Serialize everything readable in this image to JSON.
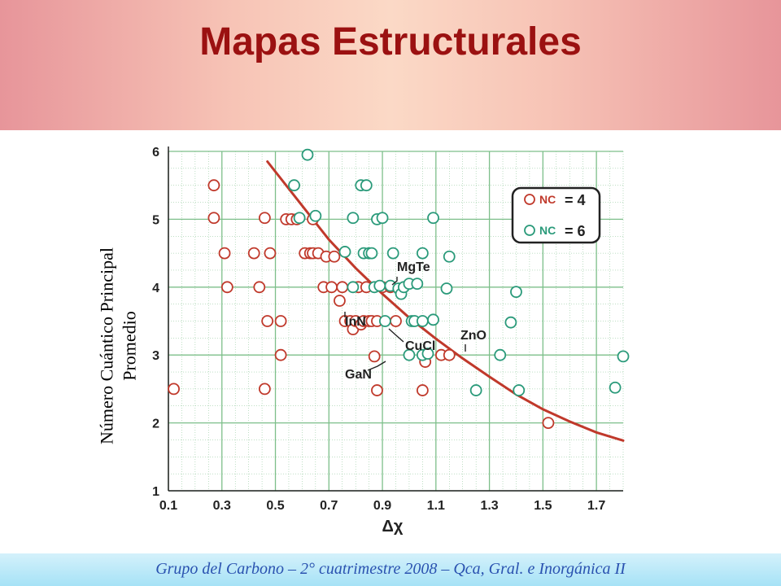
{
  "slide": {
    "title": "Mapas Estructurales",
    "ylabel_line1": "Número Cuántico Principal",
    "ylabel_line2": "Promedio",
    "footer": "Grupo del Carbono – 2° cuatrimestre 2008 – Qca, Gral. e Inorgánica II"
  },
  "colors": {
    "title": "#9b1111",
    "nc4": "#c0392b",
    "nc6": "#2a9a7a",
    "grid": "#7dbf8a",
    "curve": "#c0392b",
    "footer_text": "#2a52b0"
  },
  "chart_data": {
    "type": "scatter",
    "xlabel": "Δχ",
    "xlim": [
      0.1,
      1.8
    ],
    "ylim": [
      1,
      6
    ],
    "xticks": [
      "0.1",
      "0.3",
      "0.5",
      "0.7",
      "0.9",
      "1.1",
      "1.3",
      "1.5",
      "1.7"
    ],
    "yticks": [
      "1",
      "2",
      "3",
      "4",
      "5",
      "6"
    ],
    "grid": true,
    "legend_placement": "top-right",
    "legend": [
      {
        "label": "NC",
        "value": "= 4",
        "color": "#c0392b"
      },
      {
        "label": "NC",
        "value": "= 6",
        "color": "#2a9a7a"
      }
    ],
    "series": [
      {
        "color": "#c0392b",
        "points": [
          [
            0.12,
            2.5
          ],
          [
            0.27,
            5.5
          ],
          [
            0.27,
            5.02
          ],
          [
            0.31,
            4.5
          ],
          [
            0.32,
            4.0
          ],
          [
            0.42,
            4.5
          ],
          [
            0.44,
            4.0
          ],
          [
            0.46,
            5.02
          ],
          [
            0.46,
            2.5
          ],
          [
            0.47,
            3.5
          ],
          [
            0.48,
            4.5
          ],
          [
            0.52,
            3.5
          ],
          [
            0.52,
            3.0
          ],
          [
            0.54,
            5.0
          ],
          [
            0.56,
            5.0
          ],
          [
            0.58,
            5.0
          ],
          [
            0.61,
            4.5
          ],
          [
            0.63,
            4.5
          ],
          [
            0.64,
            4.5
          ],
          [
            0.64,
            5.0
          ],
          [
            0.66,
            4.5
          ],
          [
            0.68,
            4.0
          ],
          [
            0.69,
            4.45
          ],
          [
            0.71,
            4.0
          ],
          [
            0.72,
            4.45
          ],
          [
            0.74,
            3.8
          ],
          [
            0.75,
            4.0
          ],
          [
            0.76,
            3.5
          ],
          [
            0.78,
            3.5
          ],
          [
            0.79,
            3.38
          ],
          [
            0.8,
            3.5
          ],
          [
            0.81,
            4.0
          ],
          [
            0.82,
            3.45
          ],
          [
            0.83,
            3.5
          ],
          [
            0.84,
            4.0
          ],
          [
            0.85,
            3.5
          ],
          [
            0.86,
            3.5
          ],
          [
            0.87,
            2.98
          ],
          [
            0.88,
            3.5
          ],
          [
            0.88,
            2.48
          ],
          [
            0.9,
            4.0
          ],
          [
            0.93,
            4.0
          ],
          [
            0.95,
            3.5
          ],
          [
            1.05,
            2.48
          ],
          [
            1.06,
            2.9
          ],
          [
            1.12,
            3.0
          ],
          [
            1.15,
            3.0
          ],
          [
            1.52,
            2.0
          ]
        ]
      },
      {
        "color": "#2a9a7a",
        "points": [
          [
            0.57,
            5.5
          ],
          [
            0.59,
            5.02
          ],
          [
            0.62,
            5.95
          ],
          [
            0.65,
            5.05
          ],
          [
            0.76,
            4.52
          ],
          [
            0.79,
            4.0
          ],
          [
            0.79,
            5.02
          ],
          [
            0.82,
            5.5
          ],
          [
            0.84,
            5.5
          ],
          [
            0.83,
            4.5
          ],
          [
            0.85,
            4.5
          ],
          [
            0.86,
            4.5
          ],
          [
            0.87,
            4.0
          ],
          [
            0.88,
            5.0
          ],
          [
            0.89,
            4.02
          ],
          [
            0.9,
            5.02
          ],
          [
            0.91,
            3.5
          ],
          [
            0.93,
            4.02
          ],
          [
            0.94,
            4.5
          ],
          [
            0.96,
            3.98
          ],
          [
            0.97,
            3.9
          ],
          [
            0.98,
            4.0
          ],
          [
            1.0,
            3.0
          ],
          [
            1.0,
            4.05
          ],
          [
            1.01,
            3.5
          ],
          [
            1.02,
            3.5
          ],
          [
            1.03,
            4.05
          ],
          [
            1.05,
            4.5
          ],
          [
            1.05,
            3.5
          ],
          [
            1.05,
            3.0
          ],
          [
            1.07,
            3.02
          ],
          [
            1.09,
            5.02
          ],
          [
            1.09,
            3.52
          ],
          [
            1.14,
            3.98
          ],
          [
            1.15,
            4.45
          ],
          [
            1.25,
            2.48
          ],
          [
            1.34,
            3.0
          ],
          [
            1.38,
            3.48
          ],
          [
            1.4,
            3.93
          ],
          [
            1.41,
            2.48
          ],
          [
            1.77,
            2.52
          ],
          [
            1.8,
            2.98
          ]
        ]
      }
    ],
    "curve": {
      "color": "#c0392b",
      "points": [
        [
          0.47,
          5.85
        ],
        [
          0.6,
          5.2
        ],
        [
          0.7,
          4.7
        ],
        [
          0.8,
          4.28
        ],
        [
          0.9,
          3.9
        ],
        [
          1.0,
          3.55
        ],
        [
          1.1,
          3.24
        ],
        [
          1.2,
          2.95
        ],
        [
          1.3,
          2.68
        ],
        [
          1.4,
          2.42
        ],
        [
          1.5,
          2.2
        ],
        [
          1.6,
          2.02
        ],
        [
          1.7,
          1.86
        ],
        [
          1.8,
          1.74
        ]
      ]
    },
    "annotations": [
      {
        "text": "MgTe",
        "point": [
          0.89,
          4.02
        ]
      },
      {
        "text": "InN",
        "point": [
          0.74,
          3.8
        ]
      },
      {
        "text": "CuCl",
        "point": [
          0.91,
          3.5
        ]
      },
      {
        "text": "ZnO",
        "point": [
          1.15,
          3.0
        ]
      },
      {
        "text": "GaN",
        "point": [
          0.87,
          2.98
        ]
      }
    ]
  }
}
